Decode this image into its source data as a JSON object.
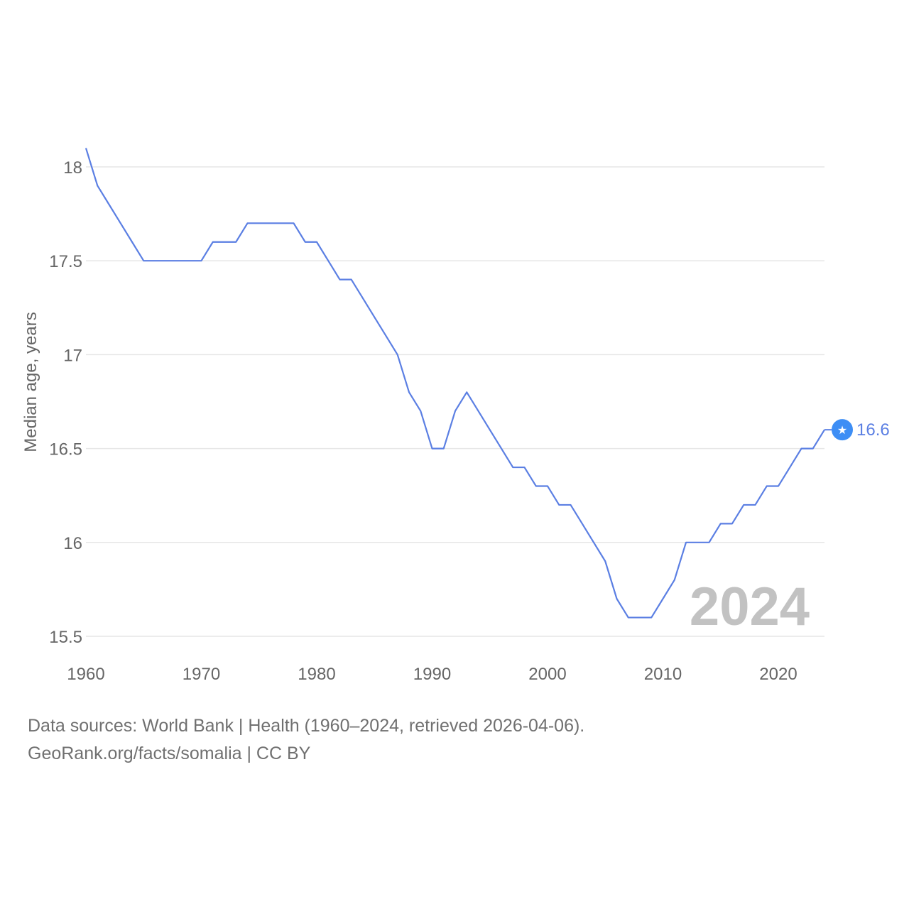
{
  "chart_data": {
    "type": "line",
    "title": "",
    "xlabel": "",
    "ylabel": "Median age, years",
    "ylim": [
      15.5,
      18
    ],
    "xlim": [
      1960,
      2024
    ],
    "x_ticks": [
      "1960",
      "1970",
      "1980",
      "1990",
      "2000",
      "2010",
      "2020"
    ],
    "y_ticks": [
      "15.5",
      "16",
      "16.5",
      "17",
      "17.5",
      "18"
    ],
    "grid": true,
    "watermark_year": "2024",
    "end_label": "16.6",
    "end_marker_icon": "star-icon",
    "colors": {
      "line": "#5b7fe3",
      "marker": "#3d8ef5",
      "grid": "#e6e6e6",
      "tick_text": "#666666",
      "watermark": "#c2c2c2"
    },
    "series": [
      {
        "name": "Somalia",
        "x": [
          1960,
          1961,
          1962,
          1963,
          1964,
          1965,
          1966,
          1967,
          1968,
          1969,
          1970,
          1971,
          1972,
          1973,
          1974,
          1975,
          1976,
          1977,
          1978,
          1979,
          1980,
          1981,
          1982,
          1983,
          1984,
          1985,
          1986,
          1987,
          1988,
          1989,
          1990,
          1991,
          1992,
          1993,
          1994,
          1995,
          1996,
          1997,
          1998,
          1999,
          2000,
          2001,
          2002,
          2003,
          2004,
          2005,
          2006,
          2007,
          2008,
          2009,
          2010,
          2011,
          2012,
          2013,
          2014,
          2015,
          2016,
          2017,
          2018,
          2019,
          2020,
          2021,
          2022,
          2023,
          2024
        ],
        "values": [
          18.1,
          17.9,
          17.8,
          17.7,
          17.6,
          17.5,
          17.5,
          17.5,
          17.5,
          17.5,
          17.5,
          17.6,
          17.6,
          17.6,
          17.7,
          17.7,
          17.7,
          17.7,
          17.7,
          17.6,
          17.6,
          17.5,
          17.4,
          17.4,
          17.3,
          17.2,
          17.1,
          17.0,
          16.8,
          16.7,
          16.5,
          16.5,
          16.7,
          16.8,
          16.7,
          16.6,
          16.5,
          16.4,
          16.4,
          16.3,
          16.3,
          16.2,
          16.2,
          16.1,
          16.0,
          15.9,
          15.7,
          15.6,
          15.6,
          15.6,
          15.7,
          15.8,
          16.0,
          16.0,
          16.0,
          16.1,
          16.1,
          16.2,
          16.2,
          16.3,
          16.3,
          16.4,
          16.5,
          16.5,
          16.6
        ]
      }
    ]
  },
  "footer": {
    "sources": "Data sources: World Bank | Health (1960–2024, retrieved 2026-04-06).",
    "credit": "GeoRank.org/facts/somalia | CC BY"
  }
}
